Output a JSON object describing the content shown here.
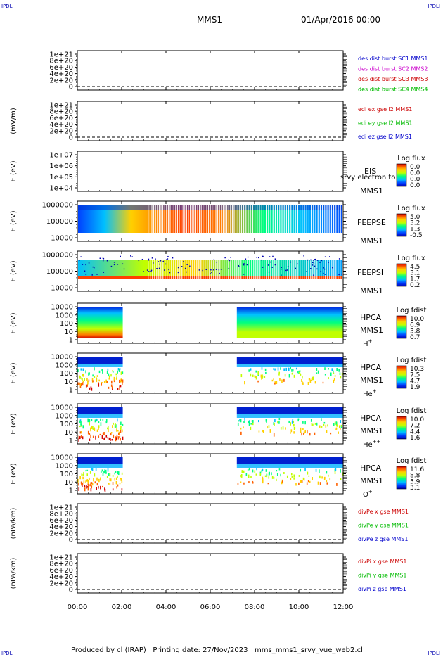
{
  "corner_label": "IPDLI",
  "header": {
    "spacecraft": "MMS1",
    "date": "01/Apr/2016 00:00"
  },
  "footer": "Produced by cl (IRAP)   Printing date: 27/Nov/2023   mms_mms1_srvy_vue_web2.cl",
  "x_ticks": [
    "00:00",
    "02:00",
    "04:00",
    "06:00",
    "08:00",
    "10:00",
    "12:00"
  ],
  "panels": [
    {
      "id": "dist",
      "ylabel": "",
      "yticks": [
        "1e+21",
        "8e+20",
        "6e+20",
        "4e+20",
        "2e+20",
        "0"
      ],
      "legend": [
        {
          "text": "des dist burst SC1 MMS1",
          "color": "#0000cc"
        },
        {
          "text": "des dist burst SC2 MMS2",
          "color": "#cc00cc"
        },
        {
          "text": "des dist burst SC3 MMS3",
          "color": "#cc0000"
        },
        {
          "text": "des dist burst SC4 MMS4",
          "color": "#00bb00"
        }
      ]
    },
    {
      "id": "edi",
      "ylabel": "(mV/m)",
      "yticks": [
        "1e+21",
        "8e+20",
        "6e+20",
        "4e+20",
        "2e+20",
        "0"
      ],
      "legend": [
        {
          "text": "edi ex gse l2 MMS1",
          "color": "#cc0000"
        },
        {
          "text": "edi ey gse l2 MMS1",
          "color": "#00bb00"
        },
        {
          "text": "edi ez gse l2 MMS1",
          "color": "#0000cc"
        }
      ]
    },
    {
      "id": "eis",
      "ylabel": "E (eV)",
      "yticks": [
        "1e+07",
        "1e+06",
        "1e+05",
        "1e+04"
      ],
      "instrument": "EIS",
      "overlay": "srvy electron to",
      "sc": "MMS1",
      "cb_title": "Log flux",
      "cb_ticks": [
        "0.0",
        "0.0",
        "0.0",
        "0.0"
      ]
    },
    {
      "id": "feepse",
      "ylabel": "E (eV)",
      "yticks": [
        "1000000",
        "100000",
        "10000"
      ],
      "instrument": "FEEPSE",
      "sc": "MMS1",
      "cb_title": "Log flux",
      "cb_ticks": [
        "5.0",
        "3.2",
        "1.3",
        "-0.5"
      ]
    },
    {
      "id": "feepsi",
      "ylabel": "E (eV)",
      "yticks": [
        "1000000",
        "100000",
        "10000"
      ],
      "instrument": "FEEPSI",
      "sc": "MMS1",
      "cb_title": "Log flux",
      "cb_ticks": [
        "4.5",
        "3.1",
        "1.7",
        "0.2"
      ]
    },
    {
      "id": "hpca_h",
      "ylabel": "E (eV)",
      "yticks": [
        "10000",
        "1000",
        "100",
        "10",
        "1"
      ],
      "instrument": "HPCA",
      "sc": "MMS1",
      "species": "H",
      "charge": "+",
      "cb_title": "Log fdist",
      "cb_ticks": [
        "10.0",
        "6.9",
        "3.8",
        "0.7"
      ]
    },
    {
      "id": "hpca_he",
      "ylabel": "E (eV)",
      "yticks": [
        "10000",
        "1000",
        "100",
        "10",
        "1"
      ],
      "instrument": "HPCA",
      "sc": "MMS1",
      "species": "He",
      "charge": "+",
      "cb_title": "Log fdist",
      "cb_ticks": [
        "10.3",
        "7.5",
        "4.7",
        "1.9"
      ]
    },
    {
      "id": "hpca_hepp",
      "ylabel": "E (eV)",
      "yticks": [
        "10000",
        "1000",
        "100",
        "10",
        "1"
      ],
      "instrument": "HPCA",
      "sc": "MMS1",
      "species": "He",
      "charge": "++",
      "cb_title": "Log fdist",
      "cb_ticks": [
        "10.0",
        "7.2",
        "4.4",
        "1.6"
      ]
    },
    {
      "id": "hpca_o",
      "ylabel": "E (eV)",
      "yticks": [
        "10000",
        "1000",
        "100",
        "10",
        "1"
      ],
      "instrument": "HPCA",
      "sc": "MMS1",
      "species": "O",
      "charge": "+",
      "cb_title": "Log fdist",
      "cb_ticks": [
        "11.6",
        "8.8",
        "5.9",
        "3.1"
      ]
    },
    {
      "id": "divpe",
      "ylabel": "(nPa/km)",
      "yticks": [
        "1e+21",
        "8e+20",
        "6e+20",
        "4e+20",
        "2e+20",
        "0"
      ],
      "legend": [
        {
          "text": "divPe x gse MMS1",
          "color": "#cc0000"
        },
        {
          "text": "divPe y gse MMS1",
          "color": "#00bb00"
        },
        {
          "text": "divPe z gse MMS1",
          "color": "#0000cc"
        }
      ]
    },
    {
      "id": "divpi",
      "ylabel": "(nPa/km)",
      "yticks": [
        "1e+21",
        "8e+20",
        "6e+20",
        "4e+20",
        "2e+20",
        "0"
      ],
      "legend": [
        {
          "text": "divPi x gse MMS1",
          "color": "#cc0000"
        },
        {
          "text": "divPi y gse MMS1",
          "color": "#00bb00"
        },
        {
          "text": "divPi z gse MMS1",
          "color": "#0000cc"
        }
      ]
    }
  ],
  "chart_data": {
    "type": "heatmap",
    "x_unit": "UT hours",
    "x_range": [
      0,
      12
    ],
    "hpca_data_intervals_hours": [
      [
        0,
        2.05
      ],
      [
        7.2,
        12
      ]
    ],
    "feeps_burst_stripes_hours": [
      3.2,
      7.4
    ],
    "colormap": [
      "#0000b0",
      "#0040ff",
      "#00c0ff",
      "#00ff80",
      "#c0ff00",
      "#ffd000",
      "#ff6000",
      "#d00000"
    ]
  }
}
